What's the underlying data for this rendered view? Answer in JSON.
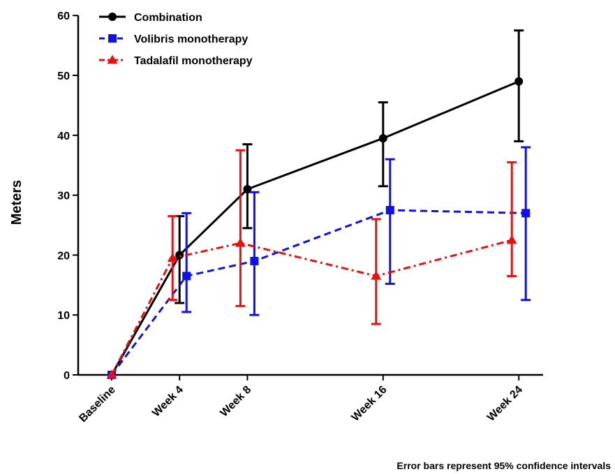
{
  "chart_data": {
    "type": "line",
    "title": "",
    "xlabel": "",
    "ylabel": "Meters",
    "categories": [
      "Baseline",
      "Week 4",
      "Week 8",
      "Week 16",
      "Week 24"
    ],
    "x_weeks": [
      0,
      4,
      8,
      16,
      24
    ],
    "ylim": [
      0,
      60
    ],
    "yticks": [
      0,
      10,
      20,
      30,
      40,
      50,
      60
    ],
    "grid": false,
    "legend_position": "top-left",
    "series": [
      {
        "name": "Combination",
        "color": "#000000",
        "marker": "circle",
        "line_style": "solid",
        "values": [
          0,
          20,
          31,
          39.5,
          49
        ],
        "ci_low": [
          0,
          12,
          24.5,
          31.5,
          39
        ],
        "ci_high": [
          0,
          26.5,
          38.5,
          45.5,
          57.5
        ]
      },
      {
        "name": "Volibris monotherapy",
        "color": "#1010e8",
        "marker": "square",
        "line_style": "dashed",
        "values": [
          0,
          16.5,
          19,
          27.5,
          27
        ],
        "ci_low": [
          0,
          10.5,
          10,
          15.2,
          12.5
        ],
        "ci_high": [
          0,
          27,
          30.5,
          36,
          38
        ]
      },
      {
        "name": "Tadalafil monotherapy",
        "color": "#e81010",
        "marker": "triangle",
        "line_style": "dashdot",
        "values": [
          0,
          19.5,
          22,
          16.5,
          22.5
        ],
        "ci_low": [
          0,
          12.5,
          11.5,
          8.5,
          16.5
        ],
        "ci_high": [
          0,
          26.5,
          37.5,
          26,
          35.5
        ]
      }
    ],
    "footnote": "Error bars represent 95% confidence intervals"
  }
}
